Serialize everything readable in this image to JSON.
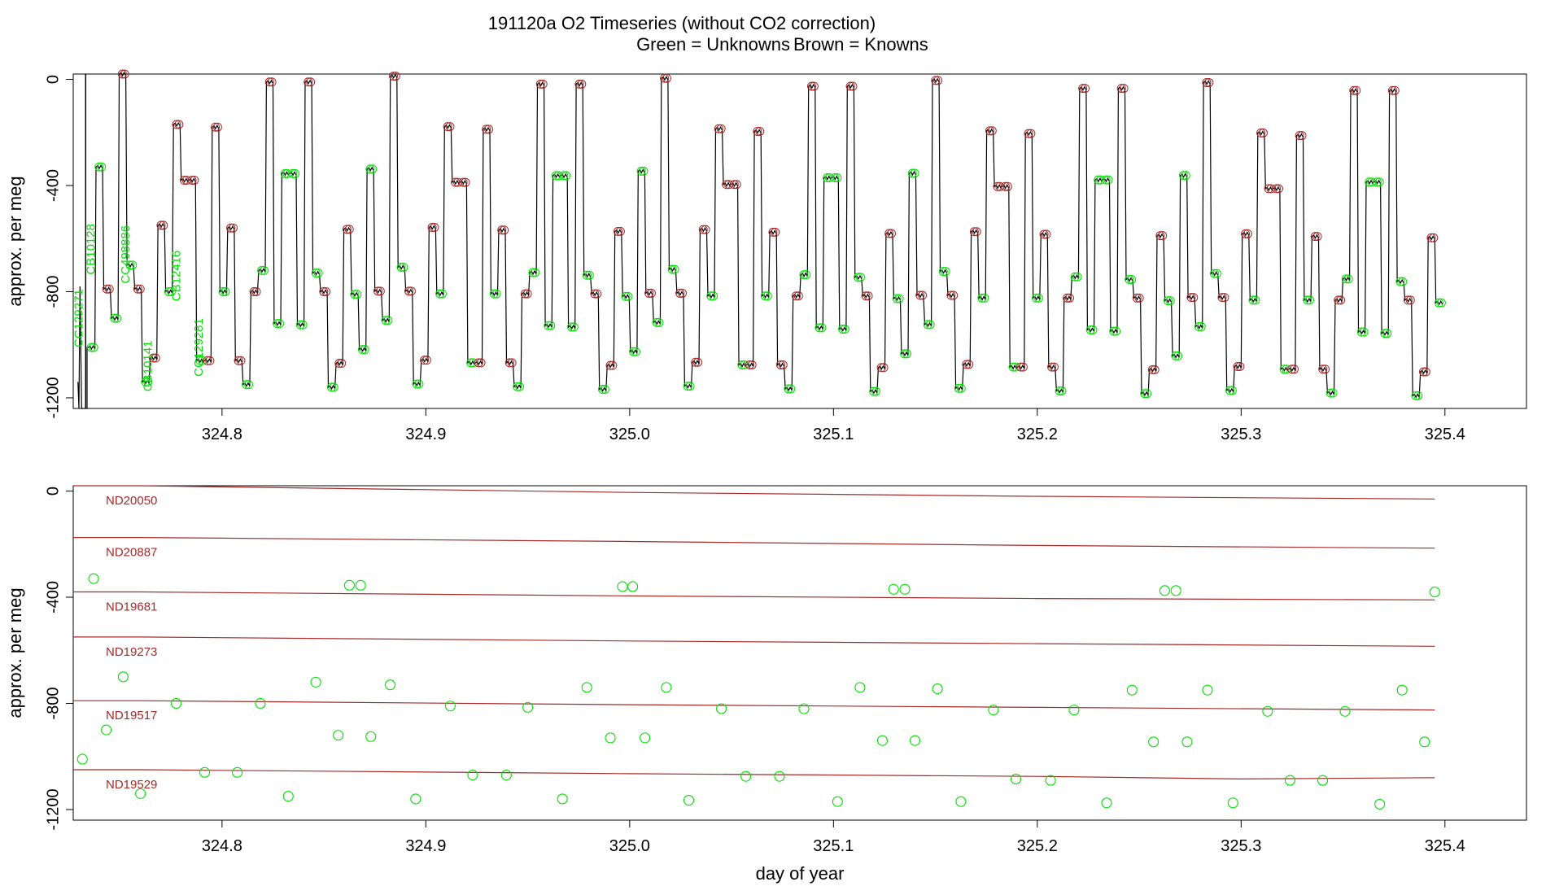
{
  "title": "191120a   O2 Timeseries (without CO2 correction)",
  "legend": {
    "unknowns": {
      "label": "Green = Unknowns",
      "color": "#00e000"
    },
    "knowns": {
      "label": "Brown = Knowns",
      "color": "#a52a2a"
    }
  },
  "chart_data": [
    {
      "type": "line",
      "panel": "top",
      "xlabel": "",
      "ylabel": "approx. per meg",
      "xlim": [
        324.727,
        325.44
      ],
      "ylim": [
        -1240,
        20
      ],
      "xticks": [
        "324.8",
        "324.9",
        "325.0",
        "325.1",
        "325.2",
        "325.3",
        "325.4"
      ],
      "yticks": [
        "0",
        "-400",
        "-800",
        "-1200"
      ],
      "grid": false,
      "cycle_start": 324.7338,
      "cycle_length": 0.1334,
      "cycles": 5,
      "step_durations": [
        0.0038,
        0.0038,
        0.0038,
        0.0038,
        0.0038,
        0.0038,
        0.0038,
        0.0038,
        0.0038,
        0.0038,
        0.0038,
        0.0038,
        0.0038,
        0.0038,
        0.0038,
        0.0038,
        0.0038,
        0.0038,
        0.0038,
        0.0038,
        0.0038,
        0.0038,
        0.0038,
        0.0038,
        0.0038,
        0.0038,
        0.0038,
        0.0038,
        0.0038,
        0.0038,
        0.0038,
        0.0038,
        0.0038,
        0.0038,
        0.0038
      ],
      "sequence": [
        {
          "kind": "unknown",
          "value": -1010
        },
        {
          "kind": "unknown",
          "value": -330
        },
        {
          "kind": "known",
          "ref": "ND19517",
          "value": -790
        },
        {
          "kind": "unknown",
          "value": -900
        },
        {
          "kind": "known",
          "ref": "ND20050",
          "value": 20
        },
        {
          "kind": "unknown",
          "value": -700
        },
        {
          "kind": "known",
          "ref": "ND19517",
          "value": -790
        },
        {
          "kind": "unknown",
          "value": -1140
        },
        {
          "kind": "known",
          "ref": "ND19529",
          "value": -1050
        },
        {
          "kind": "known",
          "ref": "ND19273",
          "value": -550
        },
        {
          "kind": "unknown",
          "value": -800
        },
        {
          "kind": "known",
          "ref": "ND20887",
          "value": -170
        },
        {
          "kind": "known",
          "ref": "ND19681",
          "value": -380
        },
        {
          "kind": "known",
          "ref": "ND19681",
          "value": -380
        },
        {
          "kind": "unknown",
          "value": -1060
        },
        {
          "kind": "known",
          "ref": "ND19529",
          "value": -1060
        },
        {
          "kind": "known",
          "ref": "ND20887",
          "value": -180
        },
        {
          "kind": "unknown",
          "value": -800
        },
        {
          "kind": "known",
          "ref": "ND19273",
          "value": -560
        },
        {
          "kind": "known",
          "ref": "ND19529",
          "value": -1060
        },
        {
          "kind": "unknown",
          "value": -1150
        },
        {
          "kind": "known",
          "ref": "ND19517",
          "value": -800
        },
        {
          "kind": "unknown",
          "value": -720
        },
        {
          "kind": "known",
          "ref": "ND20050",
          "value": -10
        },
        {
          "kind": "unknown",
          "value": -920
        },
        {
          "kind": "unknown",
          "value": -355
        },
        {
          "kind": "unknown",
          "value": -355
        },
        {
          "kind": "unknown",
          "value": -925
        },
        {
          "kind": "known",
          "ref": "ND20050",
          "value": -10
        },
        {
          "kind": "unknown",
          "value": -730
        },
        {
          "kind": "known",
          "ref": "ND19517",
          "value": -800
        },
        {
          "kind": "unknown",
          "value": -1160
        },
        {
          "kind": "known",
          "ref": "ND19529",
          "value": -1070
        },
        {
          "kind": "known",
          "ref": "ND19273",
          "value": -565
        },
        {
          "kind": "unknown",
          "value": -810
        }
      ],
      "vertical_labels": [
        {
          "text": "CC129271",
          "x": 324.7315,
          "y": -900
        },
        {
          "text": "CB10128",
          "x": 324.7375,
          "y": -640
        },
        {
          "text": "CC498886",
          "x": 324.7545,
          "y": -660
        },
        {
          "text": "CB10141",
          "x": 324.7655,
          "y": -1080
        },
        {
          "text": "CB12416",
          "x": 324.7795,
          "y": -740
        },
        {
          "text": "CC129281",
          "x": 324.7905,
          "y": -1010
        }
      ]
    },
    {
      "type": "scatter",
      "panel": "bottom",
      "xlabel": "day of year",
      "ylabel": "approx. per meg",
      "xlim": [
        324.727,
        325.44
      ],
      "ylim": [
        -1240,
        20
      ],
      "xticks": [
        "324.8",
        "324.9",
        "325.0",
        "325.1",
        "325.2",
        "325.3",
        "325.4"
      ],
      "yticks": [
        "0",
        "-400",
        "-800",
        "-1200"
      ],
      "grid": false,
      "reference_lines": [
        {
          "name": "ND20050",
          "x": [
            324.727,
            324.76,
            325.0,
            325.2,
            325.395
          ],
          "y": [
            20,
            20,
            -5,
            -20,
            -30
          ]
        },
        {
          "name": "ND20887",
          "x": [
            324.727,
            324.76,
            325.0,
            325.2,
            325.395
          ],
          "y": [
            -175,
            -175,
            -190,
            -205,
            -215
          ]
        },
        {
          "name": "ND19681",
          "x": [
            324.727,
            324.76,
            325.0,
            325.2,
            325.395
          ],
          "y": [
            -380,
            -380,
            -395,
            -405,
            -410
          ]
        },
        {
          "name": "ND19273",
          "x": [
            324.727,
            324.76,
            325.0,
            325.2,
            325.395
          ],
          "y": [
            -550,
            -550,
            -565,
            -575,
            -585
          ]
        },
        {
          "name": "ND19517",
          "x": [
            324.727,
            324.76,
            325.0,
            325.2,
            325.395
          ],
          "y": [
            -790,
            -790,
            -805,
            -815,
            -825
          ]
        },
        {
          "name": "ND19529",
          "x": [
            324.727,
            324.76,
            325.0,
            325.2,
            325.3,
            325.395
          ],
          "y": [
            -1050,
            -1050,
            -1065,
            -1075,
            -1085,
            -1080
          ]
        }
      ],
      "unknowns": {
        "x": [
          324.7315,
          324.737,
          324.7432,
          324.7515,
          324.76,
          324.7775,
          324.7915,
          324.8075,
          324.8188,
          324.8325,
          324.846,
          324.857,
          324.8625,
          324.868,
          324.873,
          324.8825,
          324.895,
          324.912,
          324.923,
          324.9395,
          324.95,
          324.967,
          324.979,
          324.9905,
          324.9965,
          325.0015,
          325.0075,
          325.018,
          325.029,
          325.045,
          325.057,
          325.0735,
          325.0855,
          325.102,
          325.113,
          325.124,
          325.1295,
          325.135,
          325.14,
          325.151,
          325.1625,
          325.1785,
          325.1895,
          325.2065,
          325.218,
          325.234,
          325.2465,
          325.257,
          325.2625,
          325.268,
          325.2735,
          325.2835,
          325.296,
          325.313,
          325.324,
          325.34,
          325.351,
          325.368,
          325.379,
          325.39,
          325.395
        ],
        "y": [
          -1010,
          -330,
          -900,
          -700,
          -1140,
          -800,
          -1060,
          -1060,
          -800,
          -1150,
          -720,
          -920,
          -355,
          -355,
          -925,
          -730,
          -1160,
          -810,
          -1070,
          -1070,
          -815,
          -1160,
          -740,
          -930,
          -360,
          -360,
          -930,
          -740,
          -1165,
          -820,
          -1075,
          -1075,
          -820,
          -1170,
          -740,
          -940,
          -370,
          -370,
          -940,
          -745,
          -1170,
          -825,
          -1085,
          -1090,
          -825,
          -1175,
          -750,
          -945,
          -375,
          -375,
          -945,
          -750,
          -1175,
          -830,
          -1090,
          -1090,
          -830,
          -1180,
          -750,
          -945,
          -380
        ]
      }
    }
  ]
}
